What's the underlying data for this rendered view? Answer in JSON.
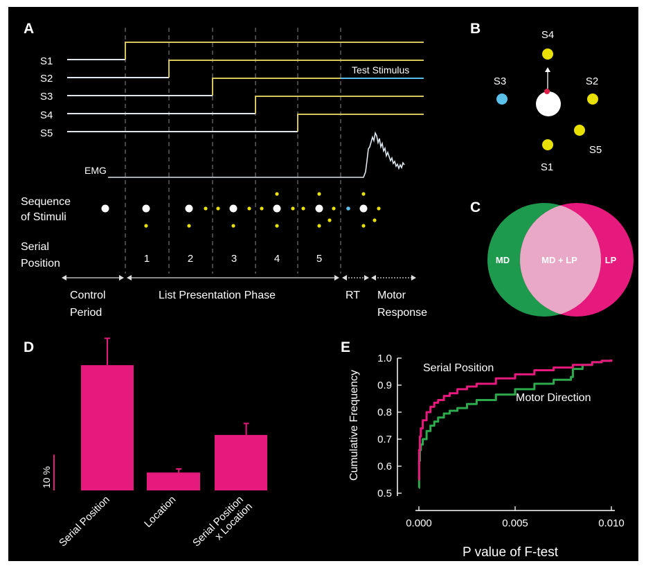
{
  "colors": {
    "background": "#000000",
    "white": "#ffffff",
    "yellow": "#e8e000",
    "blue": "#5bc0ea",
    "magenta": "#e6197c",
    "green": "#1e9a4e",
    "overlap": "#e9a9c6",
    "trace_yellow": "#d7c75a",
    "trace_white": "#dfe8ee"
  },
  "panelA": {
    "label": "A",
    "stim_labels": [
      "S1",
      "S2",
      "S3",
      "S4",
      "S5"
    ],
    "test_stimulus": "Test Stimulus",
    "emg_label": "EMG",
    "sequence_label": [
      "Sequence",
      "of Stimuli"
    ],
    "serial_label": [
      "Serial",
      "Position"
    ],
    "serial_numbers": [
      "1",
      "2",
      "3",
      "4",
      "5"
    ],
    "phases": {
      "control": [
        "Control",
        "Period"
      ],
      "list": "List Presentation Phase",
      "rt": "RT",
      "motor": [
        "Motor",
        "Response"
      ]
    }
  },
  "panelB": {
    "label": "B",
    "stimuli": [
      {
        "name": "S4",
        "color": "#e8e000"
      },
      {
        "name": "S3",
        "color": "#5bc0ea"
      },
      {
        "name": "S2",
        "color": "#e8e000"
      },
      {
        "name": "S5",
        "color": "#e8e000"
      },
      {
        "name": "S1",
        "color": "#e8e000"
      }
    ]
  },
  "panelC": {
    "label": "C",
    "left": "MD",
    "center": "MD + LP",
    "right": "LP"
  },
  "panelD": {
    "label": "D",
    "scale_label": "10 %",
    "scale_value": 10,
    "chart_data": {
      "type": "bar",
      "categories": [
        "Serial Position",
        "Location",
        "Serial Position x Location"
      ],
      "category_lines": [
        [
          "Serial Position"
        ],
        [
          "Location"
        ],
        [
          "Serial Position",
          "x Location"
        ]
      ],
      "values": [
        35,
        5,
        15.5
      ],
      "errors": [
        7.5,
        1,
        3.2
      ],
      "color": "#e6197c",
      "ylim": [
        0,
        48
      ]
    }
  },
  "panelE": {
    "label": "E",
    "chart_data": {
      "type": "line",
      "xlabel": "P value of F-test",
      "ylabel": "Cumulative Frequency",
      "xlim": [
        0,
        0.01
      ],
      "ylim": [
        0.5,
        1.0
      ],
      "xticks": [
        "0.000",
        "0.005",
        "0.010"
      ],
      "yticks": [
        "0.5",
        "0.6",
        "0.7",
        "0.8",
        "0.9",
        "1.0"
      ],
      "series": [
        {
          "name": "Serial Position",
          "color": "#e6197c",
          "x": [
            0,
            1e-05,
            5e-05,
            0.0001,
            0.0002,
            0.0004,
            0.0006,
            0.0008,
            0.001,
            0.0013,
            0.0016,
            0.002,
            0.0025,
            0.003,
            0.004,
            0.005,
            0.006,
            0.007,
            0.008,
            0.009,
            0.0095,
            0.01
          ],
          "y": [
            0.55,
            0.66,
            0.71,
            0.74,
            0.77,
            0.8,
            0.82,
            0.835,
            0.845,
            0.86,
            0.87,
            0.885,
            0.895,
            0.905,
            0.925,
            0.94,
            0.955,
            0.965,
            0.975,
            0.985,
            0.99,
            0.995
          ]
        },
        {
          "name": "Motor Direction",
          "color": "#2eaa4e",
          "x": [
            0,
            1e-05,
            5e-05,
            0.0001,
            0.0002,
            0.0004,
            0.0006,
            0.0008,
            0.001,
            0.0013,
            0.0016,
            0.002,
            0.0025,
            0.003,
            0.004,
            0.005,
            0.006,
            0.007,
            0.0079,
            0.008,
            0.0085,
            0.009,
            0.0095,
            0.01
          ],
          "y": [
            0.52,
            0.62,
            0.66,
            0.68,
            0.7,
            0.73,
            0.75,
            0.765,
            0.78,
            0.795,
            0.805,
            0.815,
            0.83,
            0.845,
            0.865,
            0.885,
            0.905,
            0.92,
            0.93,
            0.96,
            0.975,
            0.985,
            0.99,
            0.995
          ]
        }
      ]
    }
  }
}
